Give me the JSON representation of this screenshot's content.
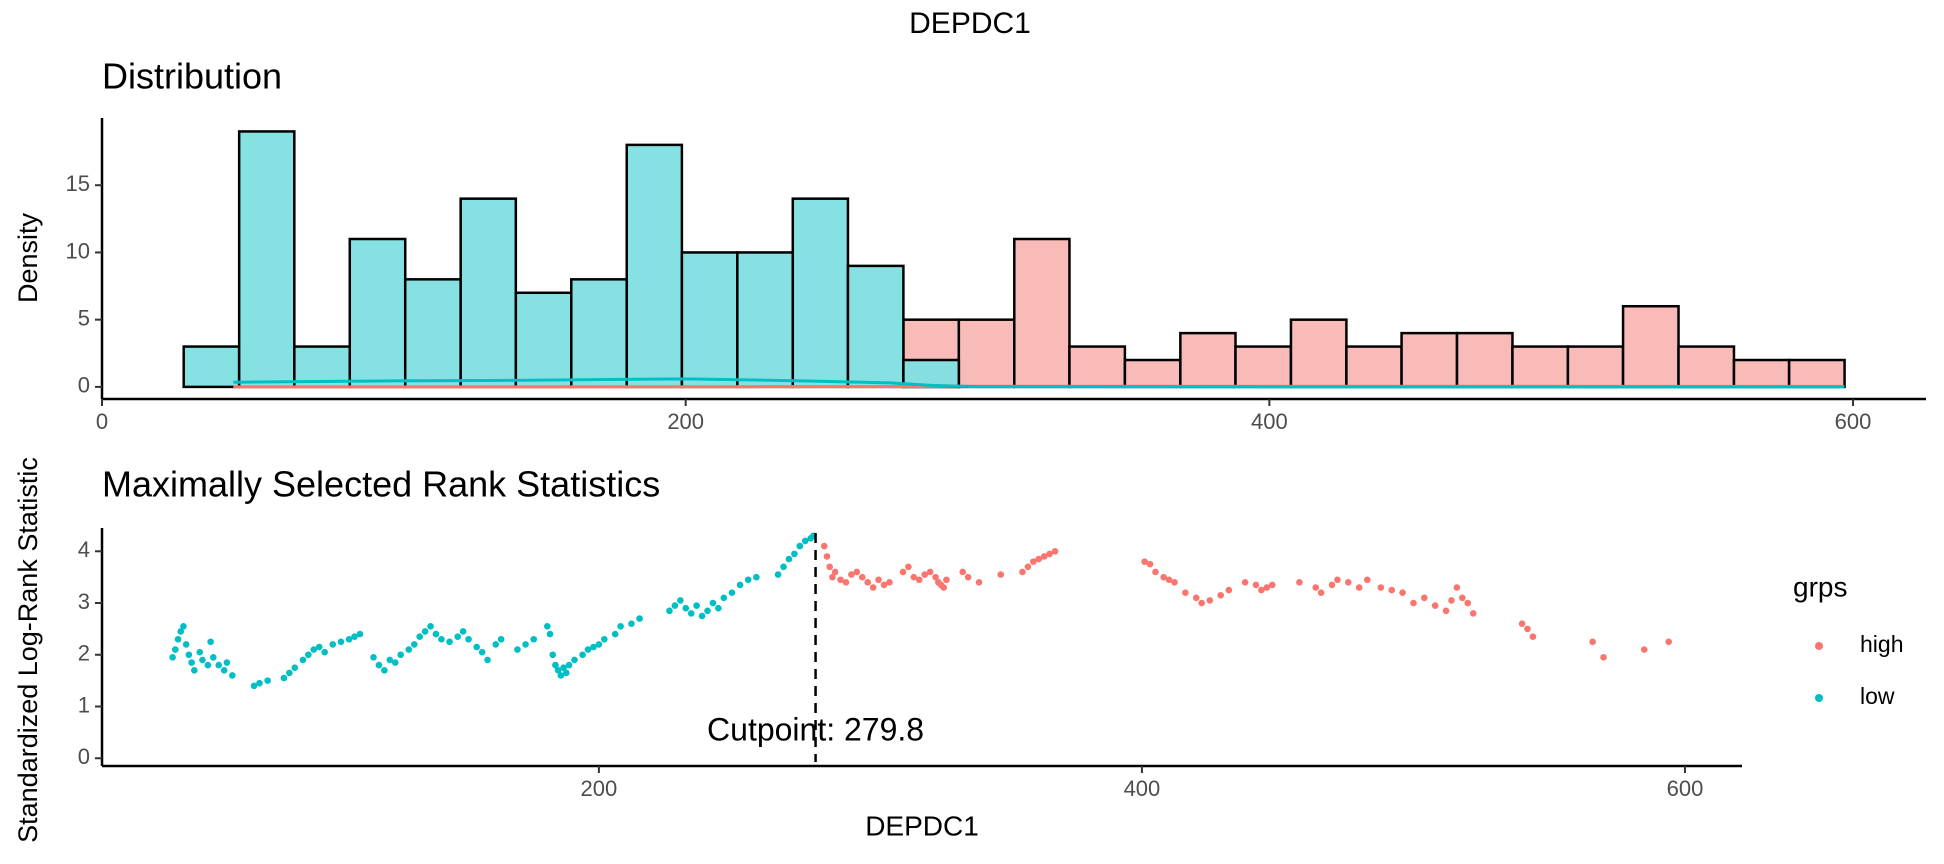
{
  "title": "DEPDC1",
  "chart_data": [
    {
      "type": "histogram",
      "title": "Distribution",
      "ylabel": "Density",
      "bins": [
        28.0,
        47.0,
        65.9,
        84.9,
        103.9,
        122.9,
        141.8,
        160.8,
        179.8,
        198.7,
        217.7,
        236.7,
        255.6,
        274.6,
        293.6,
        312.6,
        331.5,
        350.5,
        369.5,
        388.4,
        407.4,
        426.4,
        445.3,
        464.3,
        483.3,
        502.3,
        521.2,
        540.2,
        559.2,
        578.1,
        597.1
      ],
      "series": [
        {
          "name": "high",
          "color": "#F8BBB8",
          "values": [
            0,
            0,
            0,
            0,
            0,
            0,
            0,
            0,
            0,
            0,
            0,
            0,
            0,
            5,
            5,
            11,
            3,
            2,
            4,
            3,
            5,
            3,
            4,
            4,
            3,
            3,
            6,
            3,
            2,
            2
          ]
        },
        {
          "name": "low",
          "color": "#7FDFE1",
          "values": [
            3,
            19,
            3,
            11,
            8,
            14,
            7,
            8,
            18,
            10,
            10,
            14,
            9,
            2,
            0,
            0,
            0,
            0,
            0,
            0,
            0,
            0,
            0,
            0,
            0,
            0,
            0,
            0,
            0,
            0
          ]
        }
      ],
      "lines": [
        {
          "color": "#F8766D",
          "x": [
            45,
            200,
            280,
            300,
            400,
            597
          ],
          "values": [
            0,
            0.01,
            0.03,
            0.05,
            0.05,
            0.04
          ]
        },
        {
          "color": "#00BFC4",
          "x": [
            45,
            100,
            150,
            200,
            240,
            270,
            285,
            300,
            400,
            597
          ],
          "values": [
            0.35,
            0.45,
            0.5,
            0.6,
            0.45,
            0.3,
            0.1,
            0.02,
            0,
            0
          ]
        }
      ],
      "xlim": [
        0,
        625
      ],
      "xticks": [
        0,
        200,
        400,
        600
      ],
      "ylim": [
        -0.9,
        20
      ],
      "yticks": [
        0,
        5,
        10,
        15
      ]
    },
    {
      "type": "scatter",
      "title": "Maximally Selected Rank Statistics",
      "xlabel": "DEPDC1",
      "ylabel": "Standardized Log-Rank Statistic",
      "legend_title": "grps",
      "series": [
        {
          "name": "high",
          "color": "#F8766D",
          "x": [
            283,
            284,
            285,
            286,
            287,
            289,
            291,
            293,
            295,
            297,
            299,
            301,
            303,
            305,
            307,
            312,
            314,
            316,
            318,
            320,
            322,
            324,
            325,
            326,
            327,
            328,
            334,
            336,
            340,
            348,
            356,
            358,
            360,
            362,
            364,
            366,
            368,
            401,
            403,
            405,
            408,
            410,
            412,
            416,
            420,
            422,
            425,
            429,
            432,
            438,
            442,
            444,
            446,
            448,
            458,
            464,
            466,
            470,
            472,
            476,
            480,
            483,
            488,
            492,
            496,
            500,
            504,
            508,
            512,
            514,
            516,
            518,
            520,
            522,
            540,
            542,
            544,
            566,
            570,
            585,
            594
          ],
          "values": [
            4.1,
            3.9,
            3.7,
            3.5,
            3.6,
            3.45,
            3.4,
            3.55,
            3.6,
            3.5,
            3.4,
            3.3,
            3.45,
            3.35,
            3.4,
            3.6,
            3.7,
            3.5,
            3.45,
            3.55,
            3.6,
            3.5,
            3.4,
            3.35,
            3.3,
            3.45,
            3.6,
            3.5,
            3.4,
            3.55,
            3.6,
            3.7,
            3.8,
            3.85,
            3.9,
            3.95,
            4.0,
            3.8,
            3.75,
            3.6,
            3.5,
            3.45,
            3.4,
            3.2,
            3.1,
            3.0,
            3.05,
            3.15,
            3.25,
            3.4,
            3.35,
            3.25,
            3.3,
            3.35,
            3.4,
            3.3,
            3.2,
            3.35,
            3.45,
            3.4,
            3.3,
            3.45,
            3.3,
            3.25,
            3.2,
            3.0,
            3.1,
            2.95,
            2.85,
            3.05,
            3.3,
            3.1,
            3.0,
            2.8,
            2.6,
            2.5,
            2.35,
            2.25,
            1.95,
            2.1,
            2.25
          ]
        },
        {
          "name": "low",
          "color": "#00BFC4",
          "x": [
            43,
            44,
            45,
            46,
            47,
            48,
            49,
            50,
            51,
            53,
            54,
            56,
            57,
            58,
            60,
            62,
            63,
            65,
            73,
            75,
            78,
            84,
            86,
            88,
            91,
            93,
            95,
            97,
            99,
            102,
            105,
            108,
            110,
            112,
            117,
            119,
            121,
            123,
            125,
            127,
            130,
            132,
            134,
            136,
            138,
            140,
            142,
            145,
            148,
            150,
            152,
            155,
            157,
            159,
            162,
            164,
            170,
            173,
            176,
            181,
            182,
            183,
            184,
            185,
            186,
            187,
            188,
            189,
            191,
            194,
            196,
            198,
            200,
            202,
            206,
            208,
            212,
            215,
            226,
            228,
            230,
            232,
            234,
            236,
            238,
            240,
            242,
            244,
            246,
            249,
            252,
            255,
            258,
            266,
            268,
            270,
            272,
            274,
            276,
            278,
            279
          ],
          "values": [
            1.95,
            2.1,
            2.3,
            2.45,
            2.55,
            2.2,
            2.0,
            1.85,
            1.7,
            2.05,
            1.9,
            1.8,
            2.25,
            1.95,
            1.8,
            1.7,
            1.85,
            1.6,
            1.4,
            1.45,
            1.5,
            1.55,
            1.65,
            1.75,
            1.9,
            2.0,
            2.1,
            2.15,
            2.05,
            2.2,
            2.25,
            2.3,
            2.35,
            2.4,
            1.95,
            1.8,
            1.7,
            1.9,
            1.85,
            2.0,
            2.1,
            2.2,
            2.35,
            2.45,
            2.55,
            2.4,
            2.3,
            2.25,
            2.35,
            2.45,
            2.3,
            2.15,
            2.05,
            1.9,
            2.2,
            2.3,
            2.1,
            2.2,
            2.3,
            2.55,
            2.4,
            2.0,
            1.8,
            1.7,
            1.6,
            1.75,
            1.65,
            1.8,
            1.9,
            2.0,
            2.1,
            2.15,
            2.2,
            2.3,
            2.4,
            2.55,
            2.6,
            2.7,
            2.85,
            2.95,
            3.05,
            2.9,
            2.8,
            2.95,
            2.75,
            2.85,
            3.0,
            2.9,
            3.1,
            3.2,
            3.35,
            3.45,
            3.5,
            3.55,
            3.7,
            3.85,
            3.95,
            4.1,
            4.2,
            4.25,
            4.3
          ]
        }
      ],
      "annotation": {
        "text": "Cutpoint: 279.8",
        "x": 279.8
      },
      "xlim": [
        17,
        621
      ],
      "xticks": [
        200,
        400,
        600
      ],
      "ylim": [
        -0.15,
        4.45
      ],
      "yticks": [
        0,
        1,
        2,
        3,
        4
      ]
    }
  ]
}
